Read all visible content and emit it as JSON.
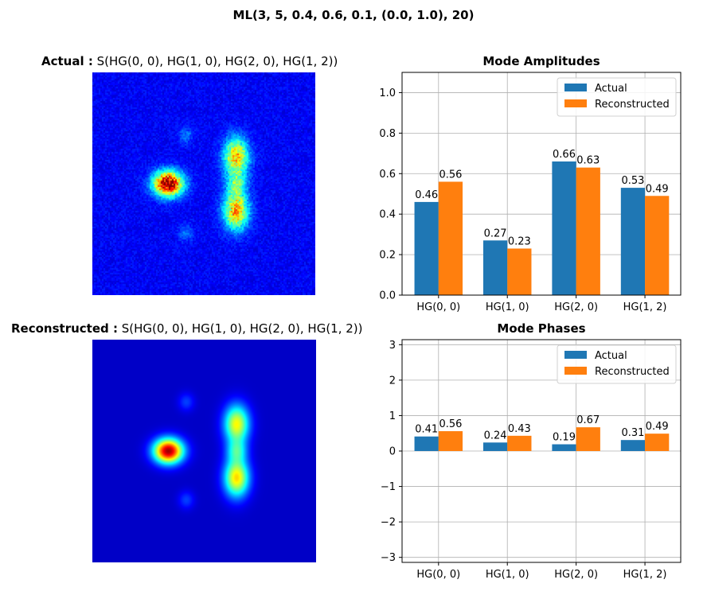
{
  "figure": {
    "title": "ML(3, 5, 0.4, 0.6, 0.1, (0.0, 1.0), 20)"
  },
  "images": [
    {
      "label_bold": "Actual :",
      "label": "S(HG(0, 0), HG(1, 0), HG(2, 0), HG(1, 2))",
      "colormap": "jet",
      "noisy": true
    },
    {
      "label_bold": "Reconstructed :",
      "label": "S(HG(0, 0), HG(1, 0), HG(2, 0), HG(1, 2))",
      "colormap": "jet",
      "noisy": false
    }
  ],
  "colors": {
    "actual": "#1f77b4",
    "reconstructed": "#ff7f0e",
    "grid": "#b0b0b0"
  },
  "chart_data": [
    {
      "type": "bar",
      "title": "Mode Amplitudes",
      "categories": [
        "HG(0, 0)",
        "HG(1, 0)",
        "HG(2, 0)",
        "HG(1, 2)"
      ],
      "series": [
        {
          "name": "Actual",
          "values": [
            0.46,
            0.27,
            0.66,
            0.53
          ],
          "labels": [
            "0.46",
            "0.27",
            "0.66",
            "0.53"
          ]
        },
        {
          "name": "Reconstructed",
          "values": [
            0.56,
            0.23,
            0.63,
            0.49
          ],
          "labels": [
            "0.56",
            "0.23",
            "0.63",
            "0.49"
          ]
        }
      ],
      "ylim": [
        0,
        1.1
      ],
      "yticks": [
        0.0,
        0.2,
        0.4,
        0.6,
        0.8,
        1.0
      ],
      "ytick_labels": [
        "0.0",
        "0.2",
        "0.4",
        "0.6",
        "0.8",
        "1.0"
      ],
      "grid": true,
      "legend": "top-right"
    },
    {
      "type": "bar",
      "title": "Mode Phases",
      "categories": [
        "HG(0, 0)",
        "HG(1, 0)",
        "HG(2, 0)",
        "HG(1, 2)"
      ],
      "series": [
        {
          "name": "Actual",
          "values": [
            0.41,
            0.24,
            0.19,
            0.31
          ],
          "labels": [
            "0.41",
            "0.24",
            "0.19",
            "0.31"
          ]
        },
        {
          "name": "Reconstructed",
          "values": [
            0.56,
            0.43,
            0.67,
            0.49
          ],
          "labels": [
            "0.56",
            "0.43",
            "0.67",
            "0.49"
          ]
        }
      ],
      "ylim": [
        -3.14159,
        3.14159
      ],
      "yticks": [
        -3,
        -2,
        -1,
        0,
        1,
        2,
        3
      ],
      "ytick_labels": [
        "−3",
        "−2",
        "−1",
        "0",
        "1",
        "2",
        "3"
      ],
      "grid": true,
      "legend": "top-right"
    }
  ]
}
